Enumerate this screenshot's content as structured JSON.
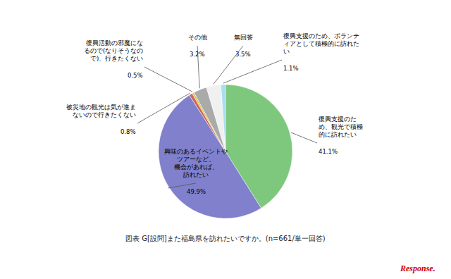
{
  "chart_data": {
    "type": "pie",
    "categories": [
      "復興支援のた\nめ、観光で積極\n的に訪れたい",
      "興味のあるイベントや\nツアーなど、\n機会があれば、\n訪れたい",
      "被災地の観光は気が進ま\nないので行きたくない",
      "復興活動の邪魔にな\nるので(なりそうなの\nで)、行きたくない",
      "その他",
      "無回答",
      "復興支援のため、ボランテ\nィアとして積極的に訪れた\nい"
    ],
    "values": [
      41.1,
      49.9,
      0.8,
      0.5,
      3.2,
      3.5,
      1.1
    ],
    "value_labels": [
      "41.1%",
      "49.9%",
      "0.8%",
      "0.5%",
      "3.2%",
      "3.5%",
      "1.1%"
    ],
    "colors": [
      "#7DC87D",
      "#8080CC",
      "#CC6666",
      "#DDCC44",
      "#AAAAAA",
      "#F0F0F0",
      "#AADDEE"
    ],
    "data_labels": true,
    "annotations": [
      "図表 G[設問]また福島県を訪れたいですか。(n=661/単一回答)",
      "Response."
    ]
  }
}
